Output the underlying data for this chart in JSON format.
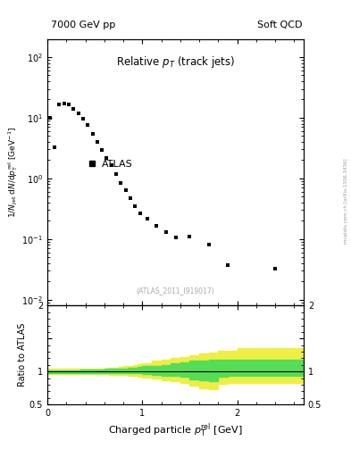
{
  "title_left": "7000 GeV pp",
  "title_right": "Soft QCD",
  "main_title": "Relative p$_{T}$ (track jets)",
  "xlabel": "Charged particle $p_{T}^{rel}$ [GeV]",
  "ylabel": "1/N$_{jet}$ dN/dp$_{T}^{rel}$ [GeV$^{-1}$]",
  "ylabel_ratio": "Ratio to ATLAS",
  "watermark": "(ATLAS_2011_I919017)",
  "arxiv": "mcplots.cern.ch [arXiv:1306.3436]",
  "legend_label": "ATLAS",
  "data_x": [
    0.025,
    0.075,
    0.125,
    0.175,
    0.225,
    0.275,
    0.325,
    0.375,
    0.425,
    0.475,
    0.525,
    0.575,
    0.625,
    0.675,
    0.725,
    0.775,
    0.825,
    0.875,
    0.925,
    0.975,
    1.05,
    1.15,
    1.25,
    1.35,
    1.5,
    1.7,
    1.9,
    2.4
  ],
  "data_y": [
    10.0,
    3.3,
    16.5,
    17.0,
    16.5,
    14.0,
    12.0,
    9.5,
    7.5,
    5.5,
    4.0,
    2.9,
    2.2,
    1.65,
    1.2,
    0.85,
    0.65,
    0.47,
    0.35,
    0.27,
    0.22,
    0.165,
    0.13,
    0.105,
    0.11,
    0.082,
    0.037,
    0.033
  ],
  "color_green": "#55dd55",
  "color_yellow": "#eeee44",
  "ylim_main": [
    0.008,
    200
  ],
  "ylim_ratio": [
    0.5,
    2.0
  ],
  "xlim": [
    0.0,
    2.7
  ],
  "band_x": [
    0.0,
    0.05,
    0.1,
    0.15,
    0.2,
    0.25,
    0.3,
    0.35,
    0.4,
    0.45,
    0.5,
    0.55,
    0.6,
    0.65,
    0.7,
    0.75,
    0.8,
    0.85,
    0.9,
    0.95,
    1.0,
    1.1,
    1.2,
    1.3,
    1.4,
    1.5,
    1.6,
    1.7,
    1.8,
    1.9,
    2.0,
    2.1,
    2.2,
    2.3,
    2.4,
    2.5,
    2.6,
    2.7
  ],
  "green_lo": [
    0.98,
    0.98,
    0.98,
    0.98,
    0.98,
    0.98,
    0.98,
    0.97,
    0.97,
    0.97,
    0.97,
    0.97,
    0.97,
    0.97,
    0.97,
    0.97,
    0.97,
    0.97,
    0.97,
    0.97,
    0.96,
    0.95,
    0.94,
    0.93,
    0.92,
    0.88,
    0.87,
    0.86,
    0.92,
    0.93,
    0.93,
    0.93,
    0.93,
    0.93,
    0.93,
    0.93,
    0.93,
    0.93
  ],
  "green_hi": [
    1.02,
    1.02,
    1.02,
    1.02,
    1.02,
    1.02,
    1.02,
    1.03,
    1.03,
    1.03,
    1.03,
    1.03,
    1.04,
    1.04,
    1.04,
    1.05,
    1.05,
    1.06,
    1.06,
    1.07,
    1.08,
    1.09,
    1.1,
    1.12,
    1.14,
    1.16,
    1.17,
    1.18,
    1.18,
    1.18,
    1.18,
    1.18,
    1.18,
    1.18,
    1.18,
    1.18,
    1.18,
    1.18
  ],
  "yellow_lo": [
    0.96,
    0.96,
    0.96,
    0.96,
    0.96,
    0.96,
    0.96,
    0.96,
    0.96,
    0.96,
    0.96,
    0.96,
    0.96,
    0.95,
    0.95,
    0.95,
    0.95,
    0.94,
    0.93,
    0.92,
    0.91,
    0.89,
    0.87,
    0.85,
    0.83,
    0.78,
    0.75,
    0.73,
    0.82,
    0.83,
    0.83,
    0.83,
    0.83,
    0.83,
    0.83,
    0.83,
    0.83,
    0.83
  ],
  "yellow_hi": [
    1.04,
    1.04,
    1.04,
    1.04,
    1.04,
    1.04,
    1.04,
    1.04,
    1.04,
    1.04,
    1.04,
    1.04,
    1.05,
    1.06,
    1.06,
    1.07,
    1.08,
    1.09,
    1.1,
    1.11,
    1.13,
    1.16,
    1.18,
    1.2,
    1.22,
    1.25,
    1.27,
    1.29,
    1.31,
    1.32,
    1.35,
    1.35,
    1.35,
    1.35,
    1.35,
    1.35,
    1.35,
    1.35
  ]
}
